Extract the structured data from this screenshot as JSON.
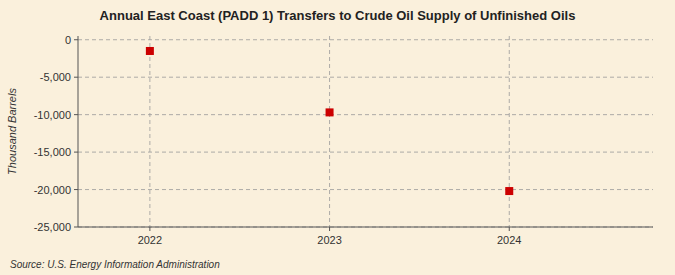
{
  "chart_data": {
    "type": "scatter",
    "title": "Annual East Coast (PADD 1) Transfers to Crude Oil Supply of Unfinished Oils",
    "ylabel": "Thousand Barrels",
    "source": "Source: U.S. Energy Information Administration",
    "x": [
      2022,
      2023,
      2024
    ],
    "values": [
      -1500,
      -9700,
      -20200
    ],
    "color": "#cc0000",
    "marker": "square",
    "xlim": [
      2021.6,
      2024.8
    ],
    "ylim": [
      -25000,
      500
    ],
    "xticks": [
      2022,
      2023,
      2024
    ],
    "yticks": [
      0,
      {
        "value": -5000,
        "label": "-5,000"
      },
      {
        "value": -10000,
        "label": "-10,000"
      },
      {
        "value": -15000,
        "label": "-15,000"
      },
      {
        "value": -20000,
        "label": "-20,000"
      },
      {
        "value": -25000,
        "label": "-25,000"
      }
    ],
    "grid": true
  }
}
